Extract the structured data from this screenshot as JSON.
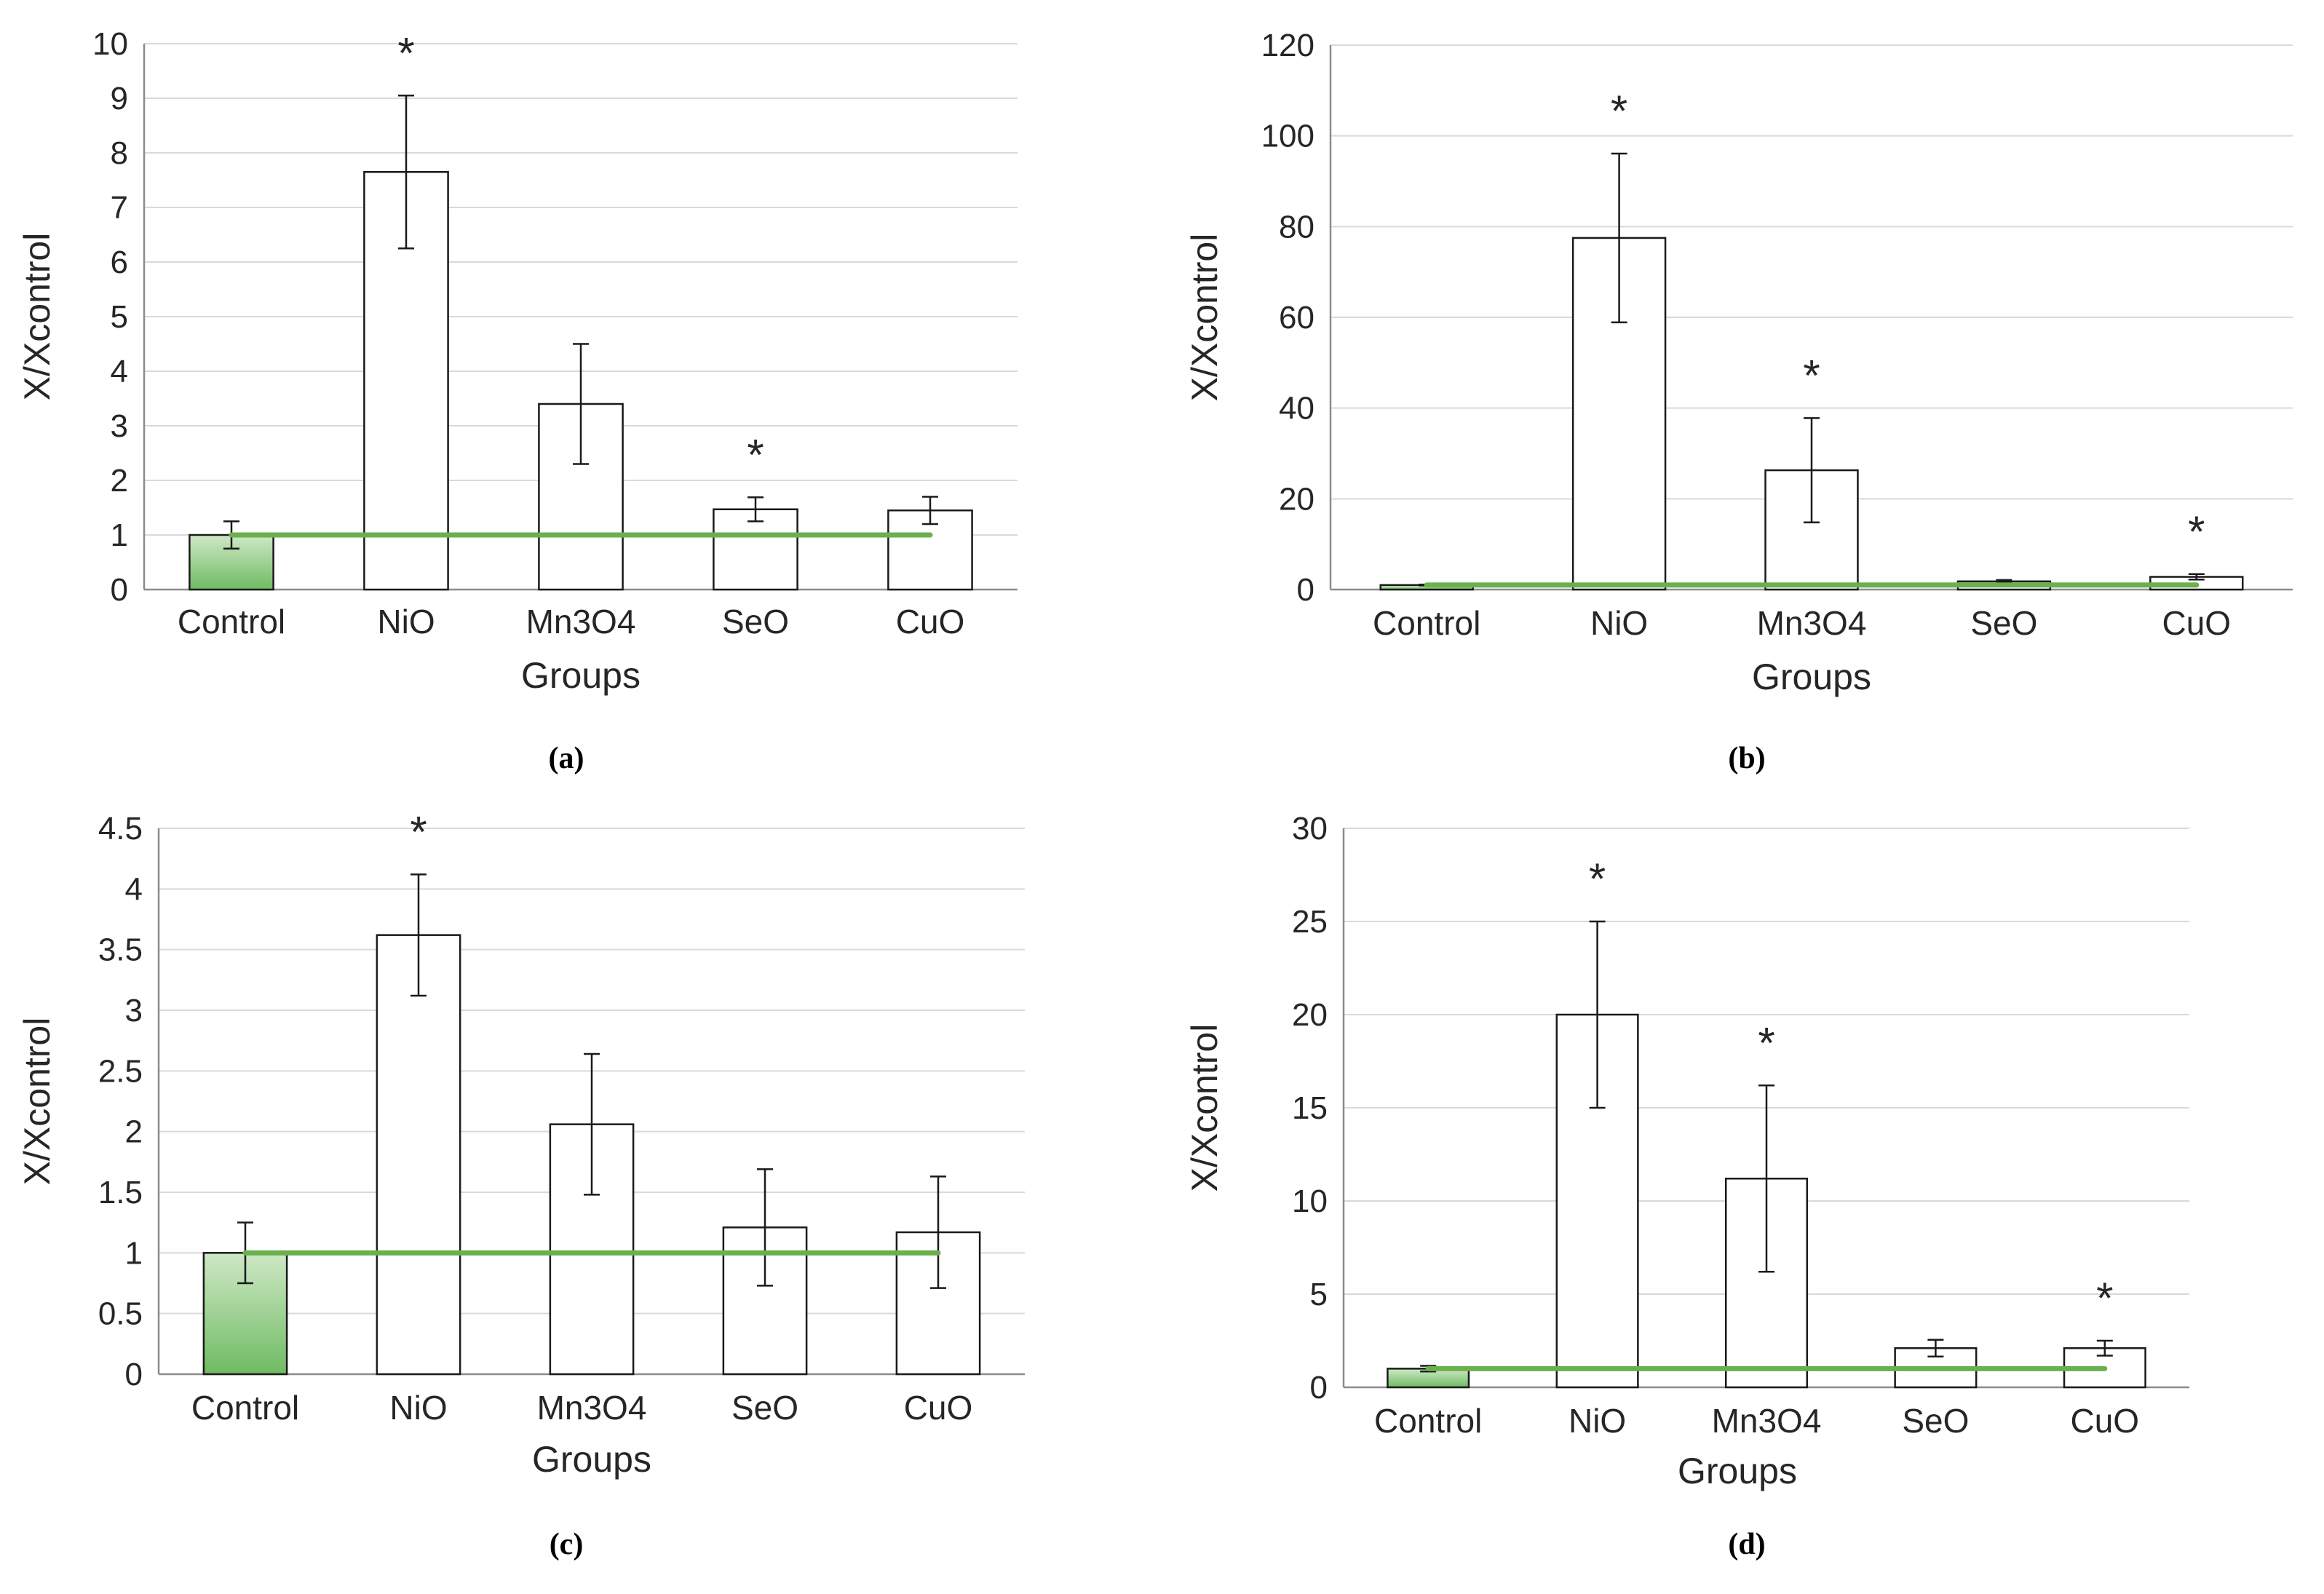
{
  "colors": {
    "control_fill_top": "#cfe8c6",
    "control_fill_bottom": "#6fbb62",
    "bar_fill": "#ffffff",
    "bar_stroke": "#1a1a1a",
    "reference_line": "#6ab04c",
    "gridline": "#d9d9d9",
    "axis": "#8c8c8c",
    "text": "#262626"
  },
  "chart_data": [
    {
      "type": "bar",
      "panel_label": "(a)",
      "categories": [
        "Control",
        "NiO",
        "Mn3O4",
        "SeO",
        "CuO"
      ],
      "values": [
        1.0,
        7.65,
        3.4,
        1.47,
        1.45
      ],
      "error": [
        0.25,
        1.4,
        1.1,
        0.22,
        0.25
      ],
      "significant": [
        false,
        true,
        false,
        true,
        false
      ],
      "significance_marker": "*",
      "reference_line": 1,
      "xlabel": "Groups",
      "ylabel": "X/Xcontrol",
      "ylim": [
        0,
        10
      ],
      "yticks": [
        "0",
        "1",
        "2",
        "3",
        "4",
        "5",
        "6",
        "7",
        "8",
        "9",
        "10"
      ],
      "grid": true
    },
    {
      "type": "bar",
      "panel_label": "(b)",
      "categories": [
        "Control",
        "NiO",
        "Mn3O4",
        "SeO",
        "CuO"
      ],
      "values": [
        1.0,
        77.5,
        26.3,
        1.8,
        2.8
      ],
      "error": [
        0.1,
        18.6,
        11.5,
        0.3,
        0.6
      ],
      "significant": [
        false,
        true,
        true,
        false,
        true
      ],
      "significance_marker": "*",
      "reference_line": 1,
      "xlabel": "Groups",
      "ylabel": "X/Xcontrol",
      "ylim": [
        0,
        120
      ],
      "yticks": [
        "0",
        "20",
        "40",
        "60",
        "80",
        "100",
        "120"
      ],
      "grid": true
    },
    {
      "type": "bar",
      "panel_label": "(c)",
      "categories": [
        "Control",
        "NiO",
        "Mn3O4",
        "SeO",
        "CuO"
      ],
      "values": [
        1.0,
        3.62,
        2.06,
        1.21,
        1.17
      ],
      "error": [
        0.25,
        0.5,
        0.58,
        0.48,
        0.46
      ],
      "significant": [
        false,
        true,
        false,
        false,
        false
      ],
      "significance_marker": "*",
      "reference_line": 1,
      "xlabel": "",
      "xtitle_line": "Groups",
      "ylabel": "X/Xcontrol",
      "ylim": [
        0,
        4.5
      ],
      "yticks": [
        "0",
        "0.5",
        "1",
        "1.5",
        "2",
        "2.5",
        "3",
        "3.5",
        "4",
        "4.5"
      ],
      "grid": true
    },
    {
      "type": "bar",
      "panel_label": "(d)",
      "categories": [
        "Control",
        "NiO",
        "Mn3O4",
        "SeO",
        "CuO"
      ],
      "values": [
        1.0,
        20.0,
        11.2,
        2.1,
        2.1
      ],
      "error": [
        0.15,
        5.0,
        5.0,
        0.45,
        0.4
      ],
      "significant": [
        false,
        true,
        true,
        false,
        true
      ],
      "significance_marker": "*",
      "reference_line": 1,
      "xlabel": "Groups",
      "ylabel": "X/Xcontrol",
      "ylim": [
        0,
        30
      ],
      "yticks": [
        "0",
        "5",
        "10",
        "15",
        "20",
        "25",
        "30"
      ],
      "grid": true
    }
  ]
}
